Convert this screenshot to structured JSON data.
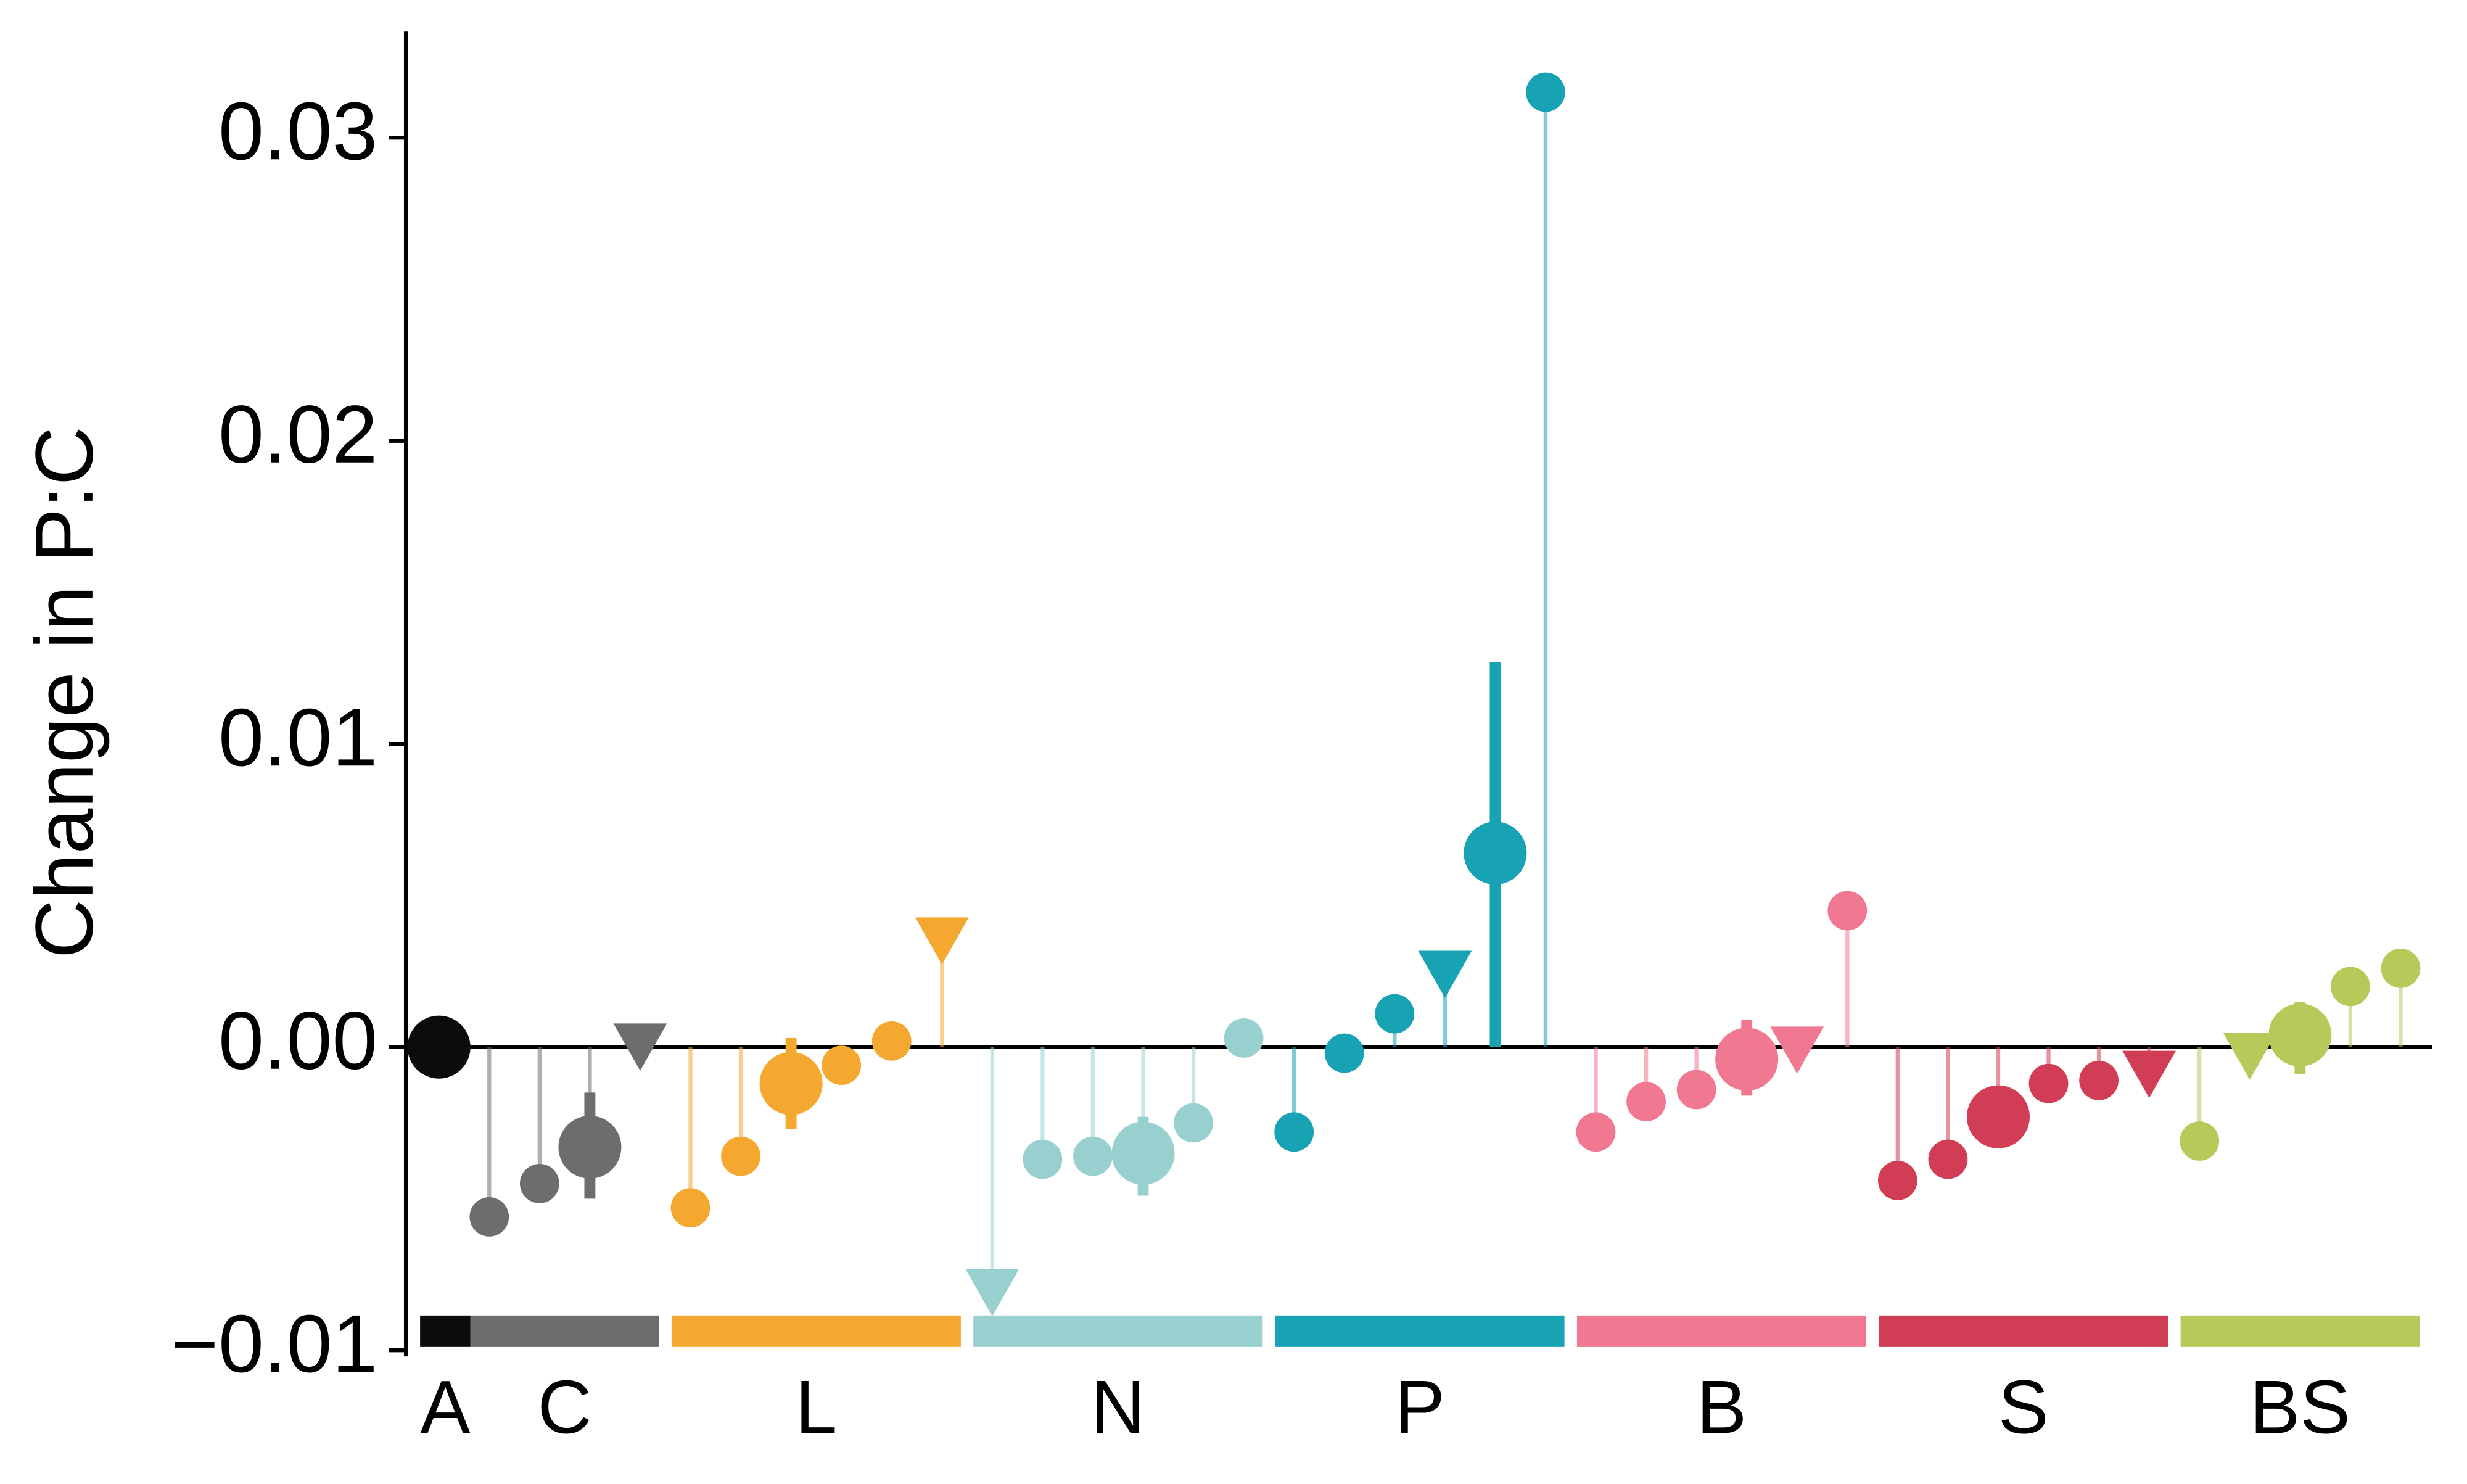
{
  "chart_data": {
    "type": "lollipop",
    "y_label": "Change in P:C",
    "ylim": [
      -0.0101,
      0.0335
    ],
    "yticks": [
      {
        "value": -0.01,
        "label": "−0.01"
      },
      {
        "value": 0,
        "label": "0.00"
      },
      0.01,
      0.02,
      0.03
    ],
    "groups": [
      {
        "name": "A",
        "color": "#0c0c0c",
        "points": [
          {
            "value": 0.0,
            "size": "large",
            "shape": "circle"
          }
        ]
      },
      {
        "name": "C",
        "color": "#6d6d6d",
        "points": [
          {
            "value": -0.0056,
            "size": "small",
            "shape": "circle"
          },
          {
            "value": -0.0045,
            "size": "small",
            "shape": "circle"
          },
          {
            "value": -0.0033,
            "size": "large",
            "shape": "circle",
            "ci": [
              -0.005,
              -0.0015
            ]
          },
          {
            "value": 0.0,
            "size": "small",
            "shape": "triangle"
          }
        ]
      },
      {
        "name": "L",
        "color": "#f5a82f",
        "points": [
          {
            "value": -0.0053,
            "size": "small",
            "shape": "circle"
          },
          {
            "value": -0.0036,
            "size": "small",
            "shape": "circle"
          },
          {
            "value": -0.0012,
            "size": "large",
            "shape": "circle",
            "ci": [
              -0.0027,
              0.0003
            ]
          },
          {
            "value": -0.0006,
            "size": "small",
            "shape": "circle"
          },
          {
            "value": 0.0002,
            "size": "small",
            "shape": "circle"
          },
          {
            "value": 0.0035,
            "size": "small",
            "shape": "triangle"
          }
        ]
      },
      {
        "name": "N",
        "color": "#97d0cf",
        "points": [
          {
            "value": -0.0081,
            "size": "small",
            "shape": "triangle"
          },
          {
            "value": -0.0037,
            "size": "small",
            "shape": "circle"
          },
          {
            "value": -0.0036,
            "size": "small",
            "shape": "circle"
          },
          {
            "value": -0.0035,
            "size": "large",
            "shape": "circle",
            "ci": [
              -0.0049,
              -0.0023
            ]
          },
          {
            "value": -0.0025,
            "size": "small",
            "shape": "circle"
          },
          {
            "value": 0.0003,
            "size": "small",
            "shape": "circle"
          }
        ]
      },
      {
        "name": "P",
        "color": "#17a3b4",
        "points": [
          {
            "value": -0.0028,
            "size": "small",
            "shape": "circle"
          },
          {
            "value": -0.0002,
            "size": "small",
            "shape": "circle"
          },
          {
            "value": 0.0011,
            "size": "small",
            "shape": "circle"
          },
          {
            "value": 0.0024,
            "size": "small",
            "shape": "triangle"
          },
          {
            "value": 0.0064,
            "size": "large",
            "shape": "circle",
            "ci": [
              0.0,
              0.0127
            ]
          },
          {
            "value": 0.0315,
            "size": "small",
            "shape": "circle"
          }
        ]
      },
      {
        "name": "B",
        "color": "#f07890",
        "points": [
          {
            "value": -0.0028,
            "size": "small",
            "shape": "circle"
          },
          {
            "value": -0.0018,
            "size": "small",
            "shape": "circle"
          },
          {
            "value": -0.0014,
            "size": "small",
            "shape": "circle"
          },
          {
            "value": -0.0004,
            "size": "large",
            "shape": "circle",
            "ci": [
              -0.0016,
              0.0009
            ]
          },
          {
            "value": -0.0001,
            "size": "small",
            "shape": "triangle"
          },
          {
            "value": 0.0045,
            "size": "small",
            "shape": "circle"
          }
        ]
      },
      {
        "name": "S",
        "color": "#d13d55",
        "points": [
          {
            "value": -0.0044,
            "size": "small",
            "shape": "circle"
          },
          {
            "value": -0.0037,
            "size": "small",
            "shape": "circle"
          },
          {
            "value": -0.0023,
            "size": "large",
            "shape": "circle"
          },
          {
            "value": -0.0012,
            "size": "small",
            "shape": "circle"
          },
          {
            "value": -0.0011,
            "size": "small",
            "shape": "circle"
          },
          {
            "value": -0.0009,
            "size": "small",
            "shape": "triangle"
          }
        ]
      },
      {
        "name": "BS",
        "color": "#b8c95a",
        "points": [
          {
            "value": -0.0031,
            "size": "small",
            "shape": "circle"
          },
          {
            "value": -0.0003,
            "size": "small",
            "shape": "triangle"
          },
          {
            "value": 0.0004,
            "size": "large",
            "shape": "circle",
            "ci": [
              -0.0009,
              0.0015
            ]
          },
          {
            "value": 0.002,
            "size": "small",
            "shape": "circle"
          },
          {
            "value": 0.0026,
            "size": "small",
            "shape": "circle"
          }
        ]
      }
    ]
  }
}
